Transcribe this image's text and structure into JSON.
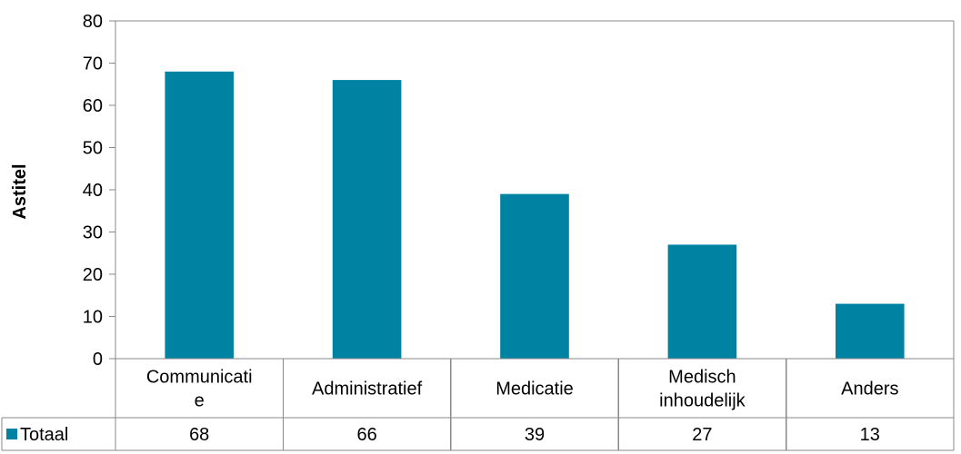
{
  "chart_data": {
    "type": "bar",
    "categories": [
      "Communicatie",
      "Administratief",
      "Medicatie",
      "Medisch inhoudelijk",
      "Anders"
    ],
    "category_display": [
      [
        "Communicati",
        "e"
      ],
      [
        "Administratief"
      ],
      [
        "Medicatie"
      ],
      [
        "Medisch",
        "inhoudelijk"
      ],
      [
        "Anders"
      ]
    ],
    "series": [
      {
        "name": "Totaal",
        "values": [
          68,
          66,
          39,
          27,
          13
        ],
        "color": "#0083A3"
      }
    ],
    "xlabel": "",
    "ylabel": "Astitel",
    "ylim": [
      0,
      80
    ],
    "yticks": [
      0,
      10,
      20,
      30,
      40,
      50,
      60,
      70,
      80
    ],
    "grid": false,
    "legend": "data-table-left",
    "data_table": true
  }
}
